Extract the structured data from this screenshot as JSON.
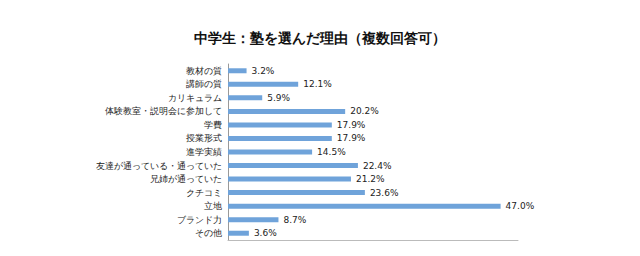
{
  "chart_data": {
    "type": "bar",
    "title": "中学生：塾を選んだ理由（複数回答可）",
    "orientation": "horizontal",
    "categories": [
      "教材の質",
      "講師の質",
      "カリキュラム",
      "体験教室・説明会に参加して",
      "学費",
      "授業形式",
      "進学実績",
      "友達が通っている・通っていた",
      "兄姉が通っていた",
      "クチコミ",
      "立地",
      "ブランド力",
      "その他"
    ],
    "values": [
      3.2,
      12.1,
      5.9,
      20.2,
      17.9,
      17.9,
      14.5,
      22.4,
      21.2,
      23.6,
      47.0,
      8.7,
      3.6
    ],
    "value_labels": [
      "3.2%",
      "12.1%",
      "5.9%",
      "20.2%",
      "17.9%",
      "17.9%",
      "14.5%",
      "22.4%",
      "21.2%",
      "23.6%",
      "47.0%",
      "8.7%",
      "3.6%"
    ],
    "color": "#6fa3da",
    "xlim": [
      0,
      50
    ],
    "data_labels": true,
    "tick_labels": "y",
    "grid": false
  }
}
